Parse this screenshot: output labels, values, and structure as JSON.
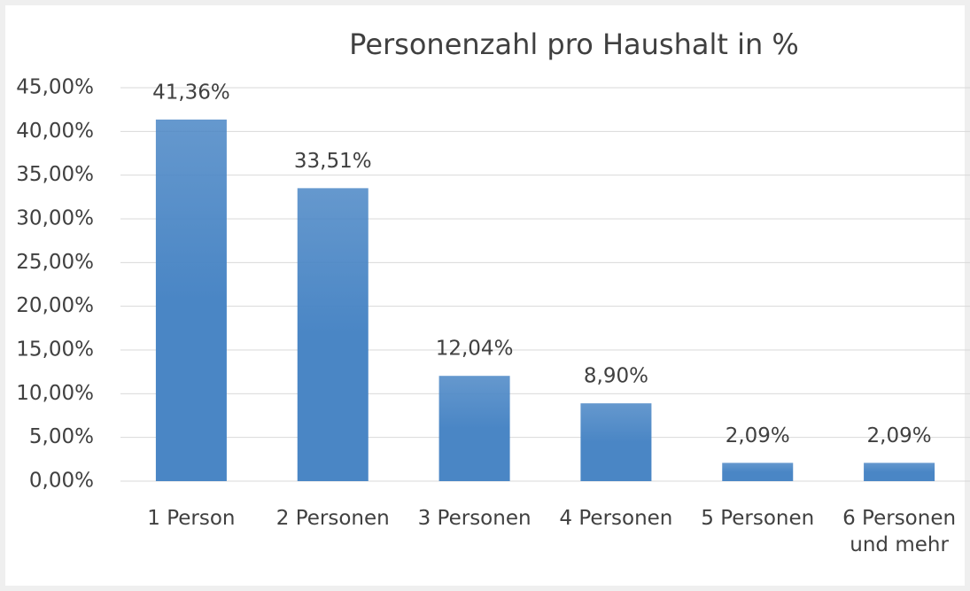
{
  "chart_data": {
    "type": "bar",
    "title": "Personenzahl pro Haushalt in %",
    "categories": [
      "1 Person",
      "2 Personen",
      "3 Personen",
      "4 Personen",
      "5 Personen",
      "6 Personen und mehr"
    ],
    "values": [
      41.36,
      33.51,
      12.04,
      8.9,
      2.09,
      2.09
    ],
    "value_labels": [
      "41,36%",
      "33,51%",
      "12,04%",
      "8,90%",
      "2,09%",
      "2,09%"
    ],
    "color": "#4a86c5",
    "ylim": [
      0,
      45
    ],
    "yticks": [
      {
        "value": 0,
        "label": "0,00%"
      },
      {
        "value": 5,
        "label": "5,00%"
      },
      {
        "value": 10,
        "label": "10,00%"
      },
      {
        "value": 15,
        "label": "15,00%"
      },
      {
        "value": 20,
        "label": "20,00%"
      },
      {
        "value": 25,
        "label": "25,00%"
      },
      {
        "value": 30,
        "label": "30,00%"
      },
      {
        "value": 35,
        "label": "35,00%"
      },
      {
        "value": 40,
        "label": "40,00%"
      },
      {
        "value": 45,
        "label": "45,00%"
      }
    ],
    "grid": true
  }
}
